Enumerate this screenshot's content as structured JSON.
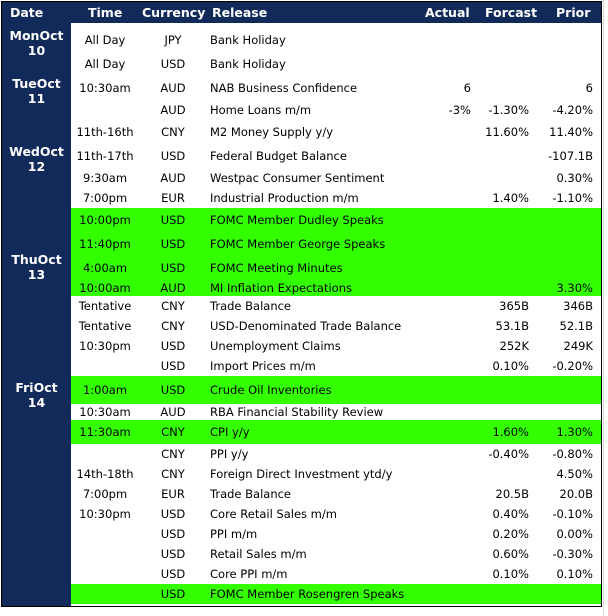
{
  "header": {
    "date": "Date",
    "time": "Time",
    "currency": "Currency",
    "release": "Release",
    "actual": "Actual",
    "forecast": "Forcast",
    "prior": "Prior"
  },
  "highlight_color": "#33ff00",
  "header_color": "#122a5a",
  "dates": [
    {
      "day": "MonOct",
      "num": "10"
    },
    {
      "day": "TueOct",
      "num": "11"
    },
    {
      "day": "WedOct",
      "num": "12"
    },
    {
      "day": "ThuOct",
      "num": "13"
    },
    {
      "day": "FriOct",
      "num": "14"
    }
  ],
  "rows": [
    {
      "time": "All Day",
      "currency": "JPY",
      "release": "Bank Holiday",
      "actual": "",
      "forecast": "",
      "prior": "",
      "highlight": false
    },
    {
      "time": "All Day",
      "currency": "USD",
      "release": "Bank Holiday",
      "actual": "",
      "forecast": "",
      "prior": "",
      "highlight": false
    },
    {
      "time": "10:30am",
      "currency": "AUD",
      "release": "NAB Business Confidence",
      "actual": "6",
      "forecast": "",
      "prior": "6",
      "highlight": false
    },
    {
      "time": "",
      "currency": "AUD",
      "release": "Home Loans m/m",
      "actual": "-3%",
      "forecast": "-1.30%",
      "prior": "-4.20%",
      "highlight": false
    },
    {
      "time": "11th-16th",
      "currency": "CNY",
      "release": "M2 Money Supply y/y",
      "actual": "",
      "forecast": "11.60%",
      "prior": "11.40%",
      "highlight": false
    },
    {
      "time": "11th-17th",
      "currency": "USD",
      "release": "Federal Budget Balance",
      "actual": "",
      "forecast": "",
      "prior": "-107.1B",
      "highlight": false
    },
    {
      "time": "9:30am",
      "currency": "AUD",
      "release": "Westpac Consumer Sentiment",
      "actual": "",
      "forecast": "",
      "prior": "0.30%",
      "highlight": false
    },
    {
      "time": "7:00pm",
      "currency": "EUR",
      "release": "Industrial Production m/m",
      "actual": "",
      "forecast": "1.40%",
      "prior": "-1.10%",
      "highlight": false
    },
    {
      "time": "10:00pm",
      "currency": "USD",
      "release": "FOMC Member Dudley Speaks",
      "actual": "",
      "forecast": "",
      "prior": "",
      "highlight": true
    },
    {
      "time": "11:40pm",
      "currency": "USD",
      "release": "FOMC Member George Speaks",
      "actual": "",
      "forecast": "",
      "prior": "",
      "highlight": true
    },
    {
      "time": "4:00am",
      "currency": "USD",
      "release": "FOMC Meeting Minutes",
      "actual": "",
      "forecast": "",
      "prior": "",
      "highlight": true
    },
    {
      "time": "10:00am",
      "currency": "AUD",
      "release": "MI Inflation Expectations",
      "actual": "",
      "forecast": "",
      "prior": "3.30%",
      "highlight": true
    },
    {
      "time": "Tentative",
      "currency": "CNY",
      "release": "Trade Balance",
      "actual": "",
      "forecast": "365B",
      "prior": "346B",
      "highlight": false
    },
    {
      "time": "Tentative",
      "currency": "CNY",
      "release": "USD-Denominated Trade Balance",
      "actual": "",
      "forecast": "53.1B",
      "prior": "52.1B",
      "highlight": false
    },
    {
      "time": "10:30pm",
      "currency": "USD",
      "release": "Unemployment Claims",
      "actual": "",
      "forecast": "252K",
      "prior": "249K",
      "highlight": false
    },
    {
      "time": "",
      "currency": "USD",
      "release": "Import Prices m/m",
      "actual": "",
      "forecast": "0.10%",
      "prior": "-0.20%",
      "highlight": false
    },
    {
      "time": "1:00am",
      "currency": "USD",
      "release": "Crude Oil Inventories",
      "actual": "",
      "forecast": "",
      "prior": "",
      "highlight": true
    },
    {
      "time": "10:30am",
      "currency": "AUD",
      "release": "RBA Financial Stability Review",
      "actual": "",
      "forecast": "",
      "prior": "",
      "highlight": false
    },
    {
      "time": "11:30am",
      "currency": "CNY",
      "release": "CPI y/y",
      "actual": "",
      "forecast": "1.60%",
      "prior": "1.30%",
      "highlight": true
    },
    {
      "time": "",
      "currency": "CNY",
      "release": "PPI y/y",
      "actual": "",
      "forecast": "-0.40%",
      "prior": "-0.80%",
      "highlight": false
    },
    {
      "time": "14th-18th",
      "currency": "CNY",
      "release": "Foreign Direct Investment ytd/y",
      "actual": "",
      "forecast": "",
      "prior": "4.50%",
      "highlight": false
    },
    {
      "time": "7:00pm",
      "currency": "EUR",
      "release": "Trade Balance",
      "actual": "",
      "forecast": "20.5B",
      "prior": "20.0B",
      "highlight": false
    },
    {
      "time": "10:30pm",
      "currency": "USD",
      "release": "Core Retail Sales m/m",
      "actual": "",
      "forecast": "0.40%",
      "prior": "-0.10%",
      "highlight": false
    },
    {
      "time": "",
      "currency": "USD",
      "release": "PPI m/m",
      "actual": "",
      "forecast": "0.20%",
      "prior": "0.00%",
      "highlight": false
    },
    {
      "time": "",
      "currency": "USD",
      "release": "Retail Sales m/m",
      "actual": "",
      "forecast": "0.60%",
      "prior": "-0.30%",
      "highlight": false
    },
    {
      "time": "",
      "currency": "USD",
      "release": "Core PPI m/m",
      "actual": "",
      "forecast": "0.10%",
      "prior": "0.10%",
      "highlight": false
    },
    {
      "time": "",
      "currency": "USD",
      "release": "FOMC Member Rosengren Speaks",
      "actual": "",
      "forecast": "",
      "prior": "",
      "highlight": true
    }
  ]
}
